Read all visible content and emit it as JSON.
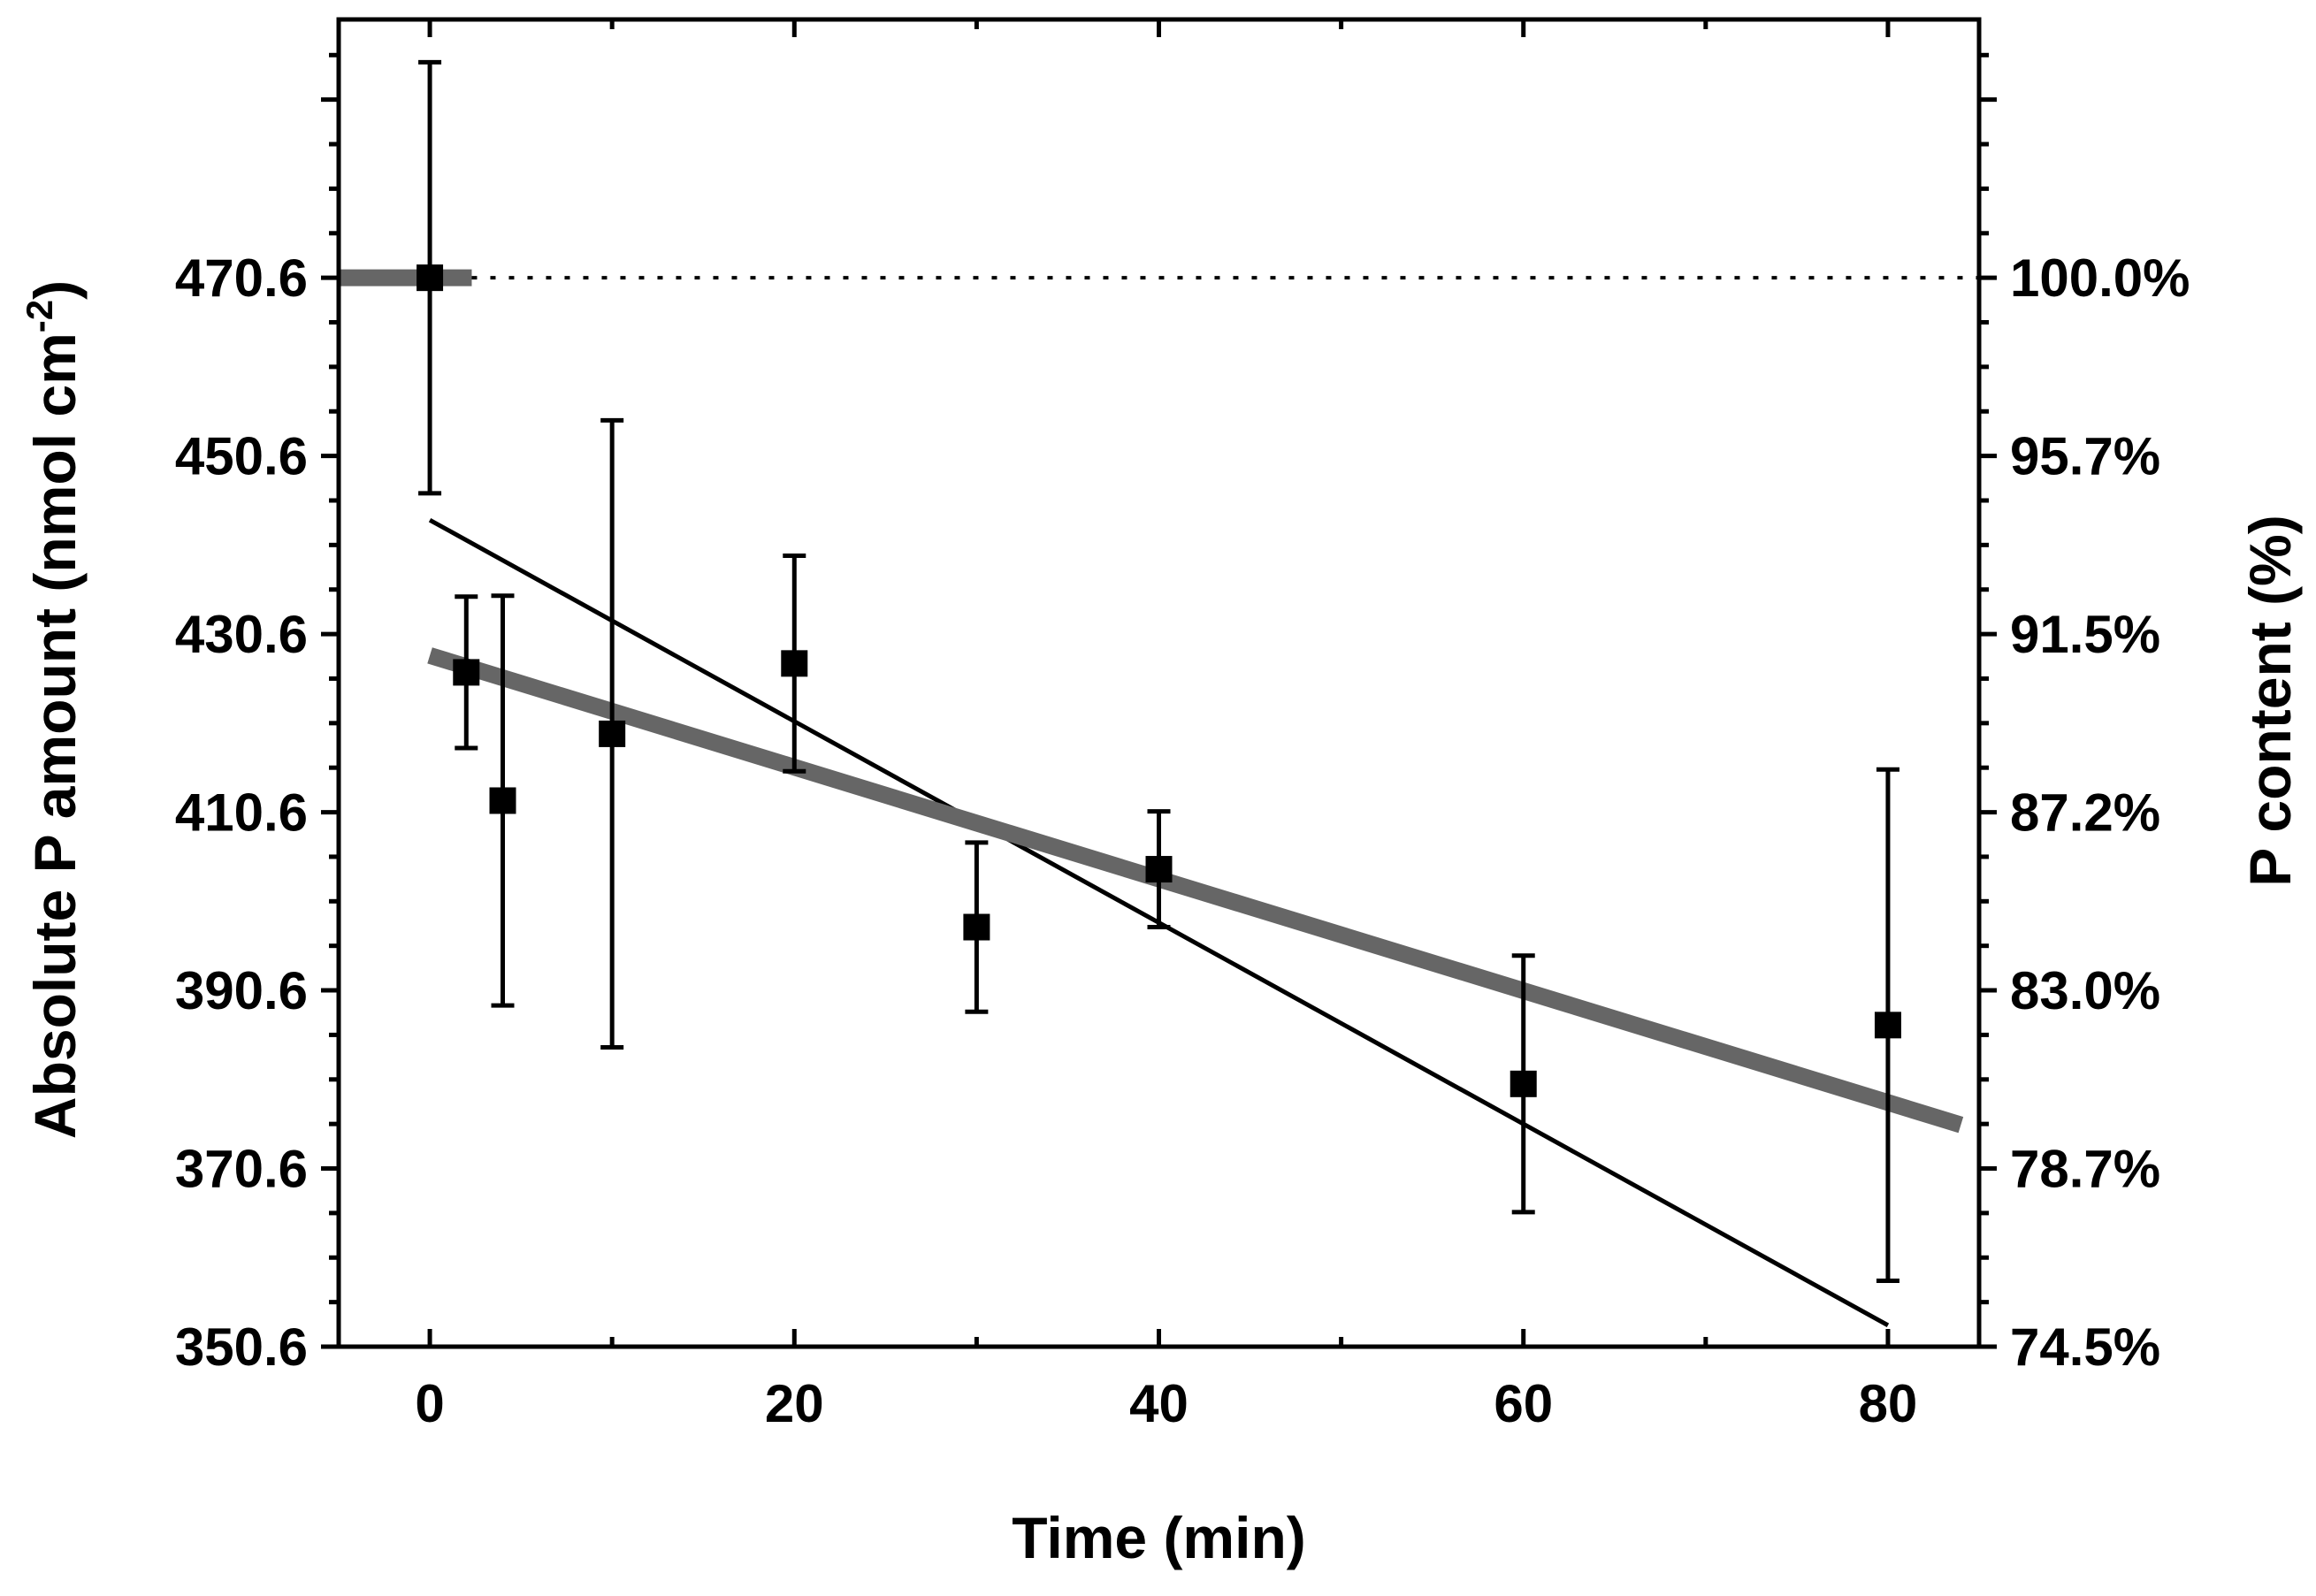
{
  "chart_data": {
    "type": "scatter",
    "title": "",
    "xlabel": "Time (min)",
    "ylabel_main": "Absolute P amount (nmol cm",
    "ylabel_sup": "-2",
    "ylabel_end": ")",
    "ylabel_right": "P content (%)",
    "xlim": [
      -5,
      85
    ],
    "ylim": [
      350.6,
      470.6
    ],
    "ylim_upper": 499.6,
    "x_ticks": [
      0,
      20,
      40,
      60,
      80
    ],
    "x_tick_labels": [
      "0",
      "20",
      "40",
      "60",
      "80"
    ],
    "y_ticks": [
      350.6,
      370.6,
      390.6,
      410.6,
      430.6,
      450.6,
      470.6
    ],
    "y_tick_labels": [
      "350.6",
      "370.6",
      "390.6",
      "410.6",
      "430.6",
      "450.6",
      "470.6"
    ],
    "y_right_tick_labels": [
      "74.5%",
      "78.7%",
      "83.0%",
      "87.2%",
      "91.5%",
      "95.7%",
      "100.0%"
    ],
    "grid": false,
    "series": [
      {
        "kind": "points",
        "x": [
          0,
          2,
          4,
          10,
          20,
          30,
          40,
          60,
          80
        ],
        "y": [
          470.6,
          426.3,
          411.9,
          419.4,
          427.3,
          397.7,
          404.2,
          380.1,
          386.7
        ],
        "yerr": [
          24.2,
          8.5,
          23.0,
          35.2,
          12.1,
          9.5,
          6.5,
          14.4,
          28.7
        ],
        "color": "#000000"
      },
      {
        "kind": "line",
        "x": [
          0,
          80
        ],
        "y": [
          443.4,
          353.0
        ],
        "color": "#000000"
      },
      {
        "kind": "line",
        "x": [
          0,
          84
        ],
        "y": [
          428.2,
          375.5
        ],
        "color": "#666666"
      },
      {
        "kind": "line",
        "x": [
          -5,
          2.3
        ],
        "y": [
          470.6,
          470.6
        ],
        "color": "#666666"
      },
      {
        "kind": "reference",
        "x": [
          2.3,
          85
        ],
        "y": [
          470.6,
          470.6
        ],
        "color": "#000000"
      }
    ]
  }
}
